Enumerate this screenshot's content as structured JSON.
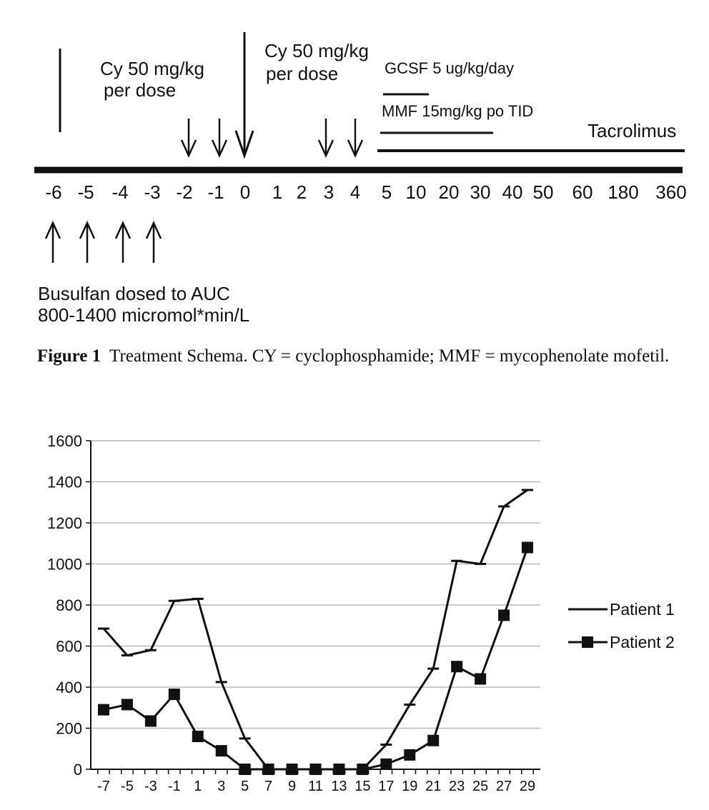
{
  "schema": {
    "day_labels": [
      "-6",
      "-5",
      "-4",
      "-3",
      "-2",
      "-1",
      "0",
      "1",
      "2",
      "3",
      "4",
      "5",
      "10",
      "20",
      "30",
      "40",
      "50",
      "60",
      "180",
      "360"
    ],
    "cy_first_line1": "Cy 50 mg/kg",
    "cy_first_line2": "per dose",
    "cy_second_line1": "Cy 50 mg/kg",
    "cy_second_line2": "per dose",
    "gcsf_label": "GCSF 5 ug/kg/day",
    "mmf_label": "MMF 15mg/kg po TID",
    "tacrolimus_label": "Tacrolimus",
    "busulfan_line1": "Busulfan dosed to AUC",
    "busulfan_line2": "800-1400 micromol*min/L"
  },
  "caption": {
    "figure_label": "Figure 1",
    "text": "Treatment Schema. CY = cyclophosphamide; MMF = mycophenolate mofetil."
  },
  "chart_data": {
    "type": "line",
    "x": [
      -7,
      -5,
      -3,
      -1,
      1,
      3,
      5,
      7,
      9,
      11,
      13,
      15,
      17,
      19,
      21,
      23,
      25,
      27,
      29
    ],
    "x_tick_labels": [
      "-7",
      "-5",
      "-3",
      "-1",
      "1",
      "3",
      "5",
      "7",
      "9",
      "11",
      "13",
      "15",
      "17",
      "19",
      "21",
      "23",
      "25",
      "27",
      "29"
    ],
    "ylim": [
      0,
      1600
    ],
    "y_ticks": [
      0,
      200,
      400,
      600,
      800,
      1000,
      1200,
      1400,
      1600
    ],
    "grid": true,
    "legend_position": "right",
    "series": [
      {
        "name": "Patient 1",
        "marker": "dash",
        "color": "#111111",
        "values": [
          685,
          555,
          580,
          820,
          830,
          425,
          150,
          0,
          0,
          0,
          0,
          0,
          120,
          315,
          490,
          1015,
          1000,
          1280,
          1360
        ]
      },
      {
        "name": "Patient 2",
        "marker": "square",
        "color": "#111111",
        "values": [
          290,
          315,
          235,
          365,
          160,
          90,
          0,
          0,
          0,
          0,
          0,
          0,
          25,
          70,
          140,
          500,
          440,
          750,
          1080
        ]
      }
    ]
  }
}
